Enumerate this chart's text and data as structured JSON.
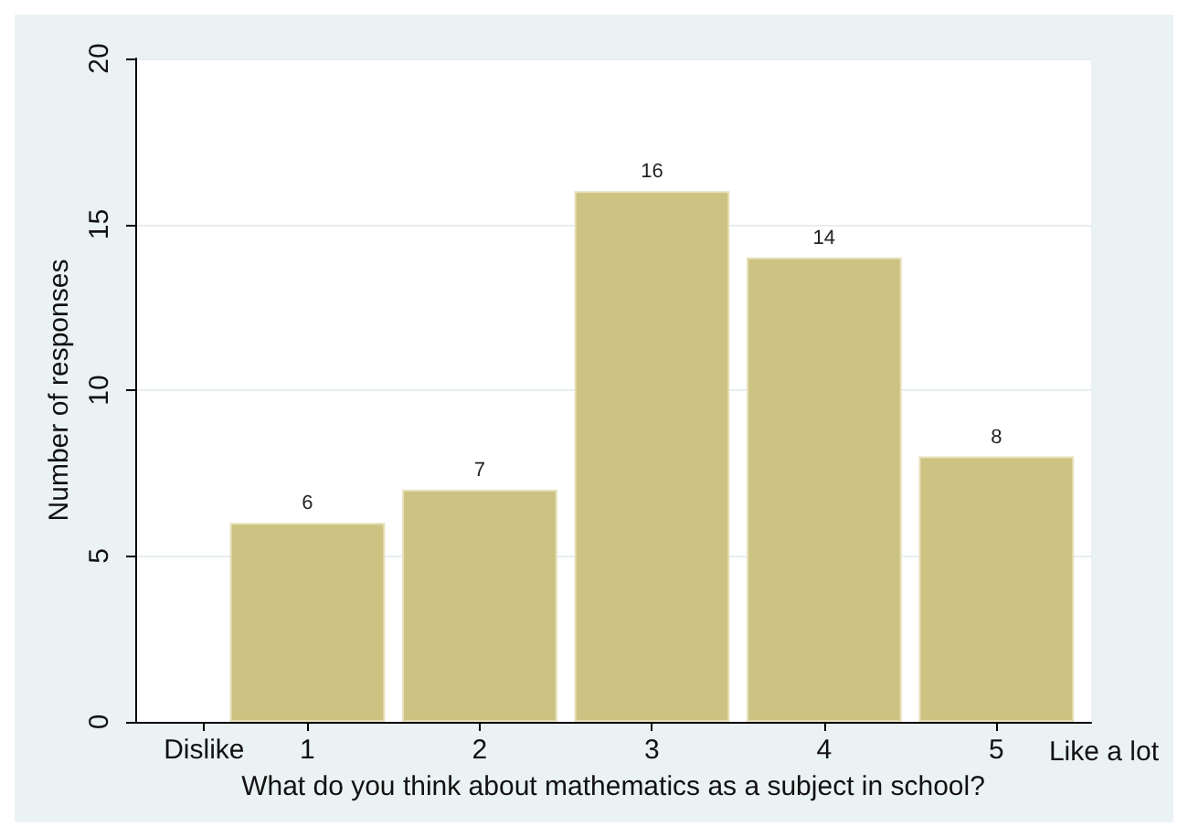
{
  "chart_data": {
    "type": "bar",
    "xlabel": "What do you think about mathematics as a subject in school?",
    "ylabel": "Number of responses",
    "x": [
      1,
      2,
      3,
      4,
      5
    ],
    "values": [
      6,
      7,
      16,
      14,
      8
    ],
    "color": "#ccc382",
    "data_labels": true,
    "xlim": [
      0,
      5.55
    ],
    "xticks": [
      {
        "value": 0.4,
        "label": "Dislike"
      },
      1,
      2,
      3,
      4,
      5
    ],
    "ylim": [
      0,
      20
    ],
    "yticks": [
      0,
      5,
      10,
      15,
      20
    ],
    "grid": "y",
    "annotations": [
      "Like a lot"
    ]
  }
}
